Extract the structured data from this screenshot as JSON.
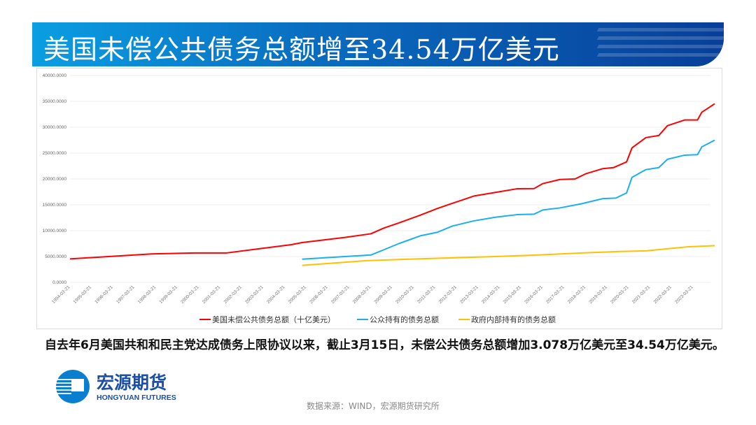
{
  "title": "美国未偿公共债务总额增至34.54万亿美元",
  "note": "自去年6月美国共和和民主党达成债务上限协议以来，截止3月15日，未偿公共债务总额增加3.078万亿美元至34.54万亿美元。",
  "logo": {
    "cn": "宏源期货",
    "en": "HONGYUAN FUTURES"
  },
  "source": "数据来源：WIND，宏源期货研究所",
  "chart_data": {
    "type": "line",
    "title": "",
    "ylim": [
      0,
      40000
    ],
    "yticks": [
      "0.0000",
      "5000.0000",
      "10000.0000",
      "15000.0000",
      "20000.0000",
      "25000.0000",
      "30000.0000",
      "35000.0000",
      "40000.0000"
    ],
    "xticks": [
      "1994-03-21",
      "1995-03-21",
      "1996-03-21",
      "1997-03-21",
      "1998-03-21",
      "1999-03-21",
      "2000-03-21",
      "2001-03-21",
      "2002-03-21",
      "2003-03-21",
      "2004-03-21",
      "2005-03-21",
      "2006-03-21",
      "2007-03-21",
      "2008-03-21",
      "2009-03-21",
      "2010-03-21",
      "2011-03-21",
      "2012-03-21",
      "2013-03-21",
      "2014-03-21",
      "2015-03-21",
      "2016-03-21",
      "2017-03-21",
      "2018-03-21",
      "2019-03-21",
      "2020-03-21",
      "2021-03-21",
      "2022-03-21",
      "2023-03-21"
    ],
    "legend_position": "bottom",
    "series": [
      {
        "name": "美国未偿公共债务总额（十亿美元）",
        "color": "#ff0000",
        "points": [
          [
            1994.2,
            4550
          ],
          [
            1996,
            5000
          ],
          [
            1998,
            5500
          ],
          [
            2000,
            5700
          ],
          [
            2001.5,
            5700
          ],
          [
            2003,
            6500
          ],
          [
            2004.5,
            7300
          ],
          [
            2005,
            7700
          ],
          [
            2007,
            8700
          ],
          [
            2008.2,
            9400
          ],
          [
            2008.8,
            10500
          ],
          [
            2009.5,
            11500
          ],
          [
            2010.5,
            13000
          ],
          [
            2011.3,
            14300
          ],
          [
            2012,
            15300
          ],
          [
            2013,
            16700
          ],
          [
            2014,
            17400
          ],
          [
            2015,
            18100
          ],
          [
            2015.8,
            18150
          ],
          [
            2016.2,
            19100
          ],
          [
            2017,
            19900
          ],
          [
            2017.7,
            20000
          ],
          [
            2018.2,
            21000
          ],
          [
            2019,
            22000
          ],
          [
            2019.5,
            22200
          ],
          [
            2020.1,
            23300
          ],
          [
            2020.35,
            26000
          ],
          [
            2021,
            28000
          ],
          [
            2021.6,
            28400
          ],
          [
            2022,
            30300
          ],
          [
            2022.8,
            31400
          ],
          [
            2023.4,
            31400
          ],
          [
            2023.6,
            32900
          ],
          [
            2024.2,
            34540
          ]
        ]
      },
      {
        "name": "公众持有的债务总额",
        "color": "#1ab0ef",
        "points": [
          [
            2005,
            4500
          ],
          [
            2007,
            5000
          ],
          [
            2008.2,
            5300
          ],
          [
            2008.8,
            6300
          ],
          [
            2009.5,
            7500
          ],
          [
            2010.5,
            9000
          ],
          [
            2011.3,
            9700
          ],
          [
            2012,
            10900
          ],
          [
            2013,
            11900
          ],
          [
            2014,
            12600
          ],
          [
            2015,
            13100
          ],
          [
            2015.8,
            13200
          ],
          [
            2016.2,
            14000
          ],
          [
            2017,
            14400
          ],
          [
            2018,
            15200
          ],
          [
            2019,
            16200
          ],
          [
            2019.6,
            16300
          ],
          [
            2020.1,
            17300
          ],
          [
            2020.35,
            20300
          ],
          [
            2021,
            21800
          ],
          [
            2021.6,
            22200
          ],
          [
            2022,
            23800
          ],
          [
            2022.8,
            24600
          ],
          [
            2023.4,
            24700
          ],
          [
            2023.6,
            26200
          ],
          [
            2024.2,
            27500
          ]
        ]
      },
      {
        "name": "政府内部持有的债务总额",
        "color": "#ffc000",
        "points": [
          [
            2005,
            3300
          ],
          [
            2008,
            4200
          ],
          [
            2010,
            4500
          ],
          [
            2012,
            4750
          ],
          [
            2014,
            5000
          ],
          [
            2016,
            5300
          ],
          [
            2018,
            5700
          ],
          [
            2020,
            6000
          ],
          [
            2021,
            6100
          ],
          [
            2022,
            6500
          ],
          [
            2023,
            6900
          ],
          [
            2024.2,
            7100
          ]
        ]
      }
    ]
  }
}
